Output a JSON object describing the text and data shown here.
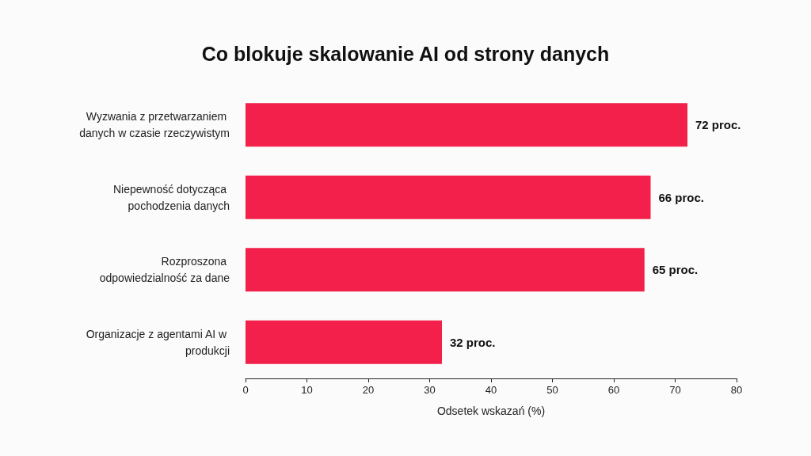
{
  "chart_data": {
    "type": "bar",
    "orientation": "horizontal",
    "title": "Co blokuje skalowanie AI od strony danych",
    "xlabel": "Odsetek wskazań (%)",
    "categories": [
      "Wyzwania z przetwarzaniem danych w czasie rzeczywistym",
      "Niepewność dotycząca pochodzenia danych",
      "Rozproszona odpowiedzialność za dane",
      "Organizacje z agentami AI w produkcji"
    ],
    "values": [
      72,
      66,
      65,
      32
    ],
    "value_labels": [
      "72 proc.",
      "66 proc.",
      "65 proc.",
      "32 proc."
    ],
    "color": "#f2204a",
    "xlim": [
      0,
      80
    ],
    "xticks": [
      0,
      10,
      20,
      30,
      40,
      50,
      60,
      70,
      80
    ],
    "grid": false
  }
}
